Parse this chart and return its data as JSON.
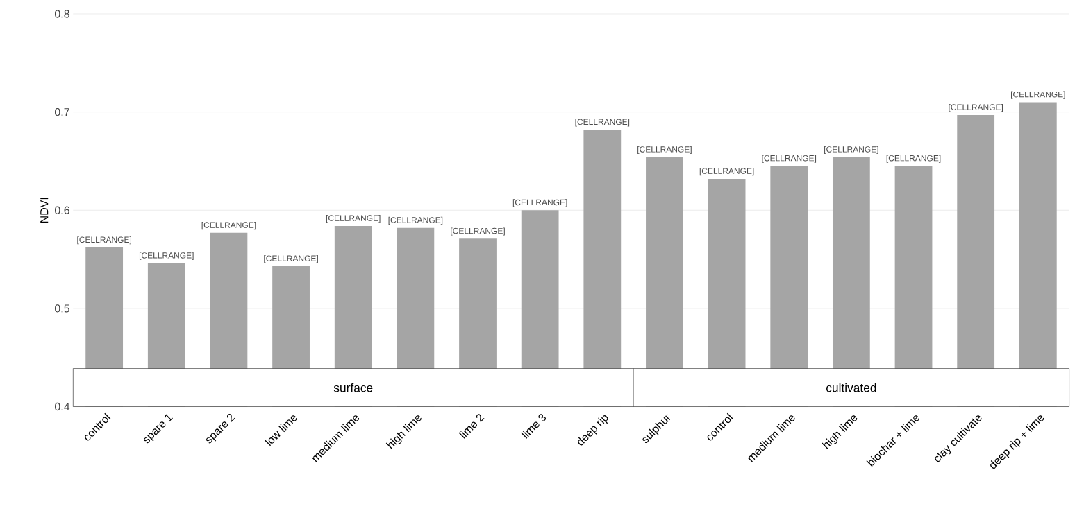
{
  "chart_data": {
    "type": "bar",
    "ylabel": "NDVI",
    "categories": [
      "control",
      "spare 1",
      "spare 2",
      "low lime",
      "medium lime",
      "high lime",
      "lime 2",
      "lime 3",
      "deep rip",
      "sulphur",
      "control",
      "medium lime",
      "high lime",
      "biochar + lime",
      "clay cultivate",
      "deep rip + lime"
    ],
    "values": [
      0.562,
      0.546,
      0.577,
      0.543,
      0.584,
      0.582,
      0.571,
      0.6,
      0.682,
      0.654,
      0.632,
      0.645,
      0.654,
      0.645,
      0.697,
      0.71
    ],
    "value_labels": [
      "[CELLRANGE]",
      "[CELLRANGE]",
      "[CELLRANGE]",
      "[CELLRANGE]",
      "[CELLRANGE]",
      "[CELLRANGE]",
      "[CELLRANGE]",
      "[CELLRANGE]",
      "[CELLRANGE]",
      "[CELLRANGE]",
      "[CELLRANGE]",
      "[CELLRANGE]",
      "[CELLRANGE]",
      "[CELLRANGE]",
      "[CELLRANGE]",
      "[CELLRANGE]"
    ],
    "color": "#a5a5a5",
    "ylim": [
      0.4,
      0.8
    ],
    "yticks": [
      0.4,
      0.5,
      0.6,
      0.7,
      0.8
    ],
    "grid": "y",
    "annotations": [
      "surface",
      "cultivated"
    ]
  }
}
